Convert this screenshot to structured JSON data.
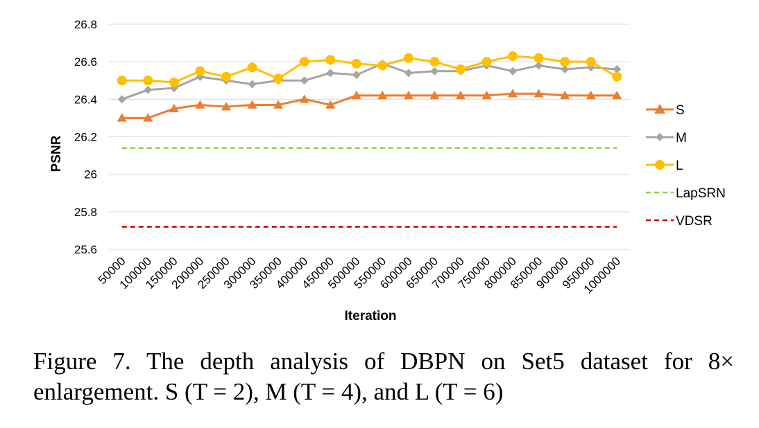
{
  "chart_data": {
    "type": "line",
    "title": "",
    "xlabel": "Iteration",
    "ylabel": "PSNR",
    "ylim": [
      25.6,
      26.8
    ],
    "yticks": [
      "25.6",
      "25.8",
      "26",
      "26.2",
      "26.4",
      "26.6",
      "26.8"
    ],
    "grid": true,
    "legend_position": "right",
    "categories": [
      "50000",
      "100000",
      "150000",
      "200000",
      "250000",
      "300000",
      "350000",
      "400000",
      "450000",
      "500000",
      "550000",
      "600000",
      "650000",
      "700000",
      "750000",
      "800000",
      "850000",
      "900000",
      "950000",
      "1000000"
    ],
    "series": [
      {
        "name": "S",
        "marker": "triangle",
        "color": "#ED7D31",
        "dashed": false,
        "values": [
          26.3,
          26.3,
          26.35,
          26.37,
          26.36,
          26.37,
          26.37,
          26.4,
          26.37,
          26.42,
          26.42,
          26.42,
          26.42,
          26.42,
          26.42,
          26.43,
          26.43,
          26.42,
          26.42,
          26.42
        ]
      },
      {
        "name": "M",
        "marker": "diamond",
        "color": "#A5A5A5",
        "dashed": false,
        "values": [
          26.4,
          26.45,
          26.46,
          26.52,
          26.5,
          26.48,
          26.5,
          26.5,
          26.54,
          26.53,
          26.59,
          26.54,
          26.55,
          26.55,
          26.58,
          26.55,
          26.58,
          26.56,
          26.57,
          26.56
        ]
      },
      {
        "name": "L",
        "marker": "circle",
        "color": "#FFC000",
        "dashed": false,
        "values": [
          26.5,
          26.5,
          26.49,
          26.55,
          26.52,
          26.57,
          26.51,
          26.6,
          26.61,
          26.59,
          26.58,
          26.62,
          26.6,
          26.56,
          26.6,
          26.63,
          26.62,
          26.6,
          26.6,
          26.52
        ]
      },
      {
        "name": "LapSRN",
        "marker": "none",
        "color": "#92D050",
        "dashed": true,
        "values": [
          26.14,
          26.14,
          26.14,
          26.14,
          26.14,
          26.14,
          26.14,
          26.14,
          26.14,
          26.14,
          26.14,
          26.14,
          26.14,
          26.14,
          26.14,
          26.14,
          26.14,
          26.14,
          26.14,
          26.14
        ]
      },
      {
        "name": "VDSR",
        "marker": "none",
        "color": "#C00000",
        "dashed": true,
        "values": [
          25.72,
          25.72,
          25.72,
          25.72,
          25.72,
          25.72,
          25.72,
          25.72,
          25.72,
          25.72,
          25.72,
          25.72,
          25.72,
          25.72,
          25.72,
          25.72,
          25.72,
          25.72,
          25.72,
          25.72
        ]
      }
    ]
  },
  "caption": "Figure 7. The depth analysis of DBPN on Set5 dataset for 8× enlargement. S (T = 2), M (T = 4), and L (T = 6)"
}
